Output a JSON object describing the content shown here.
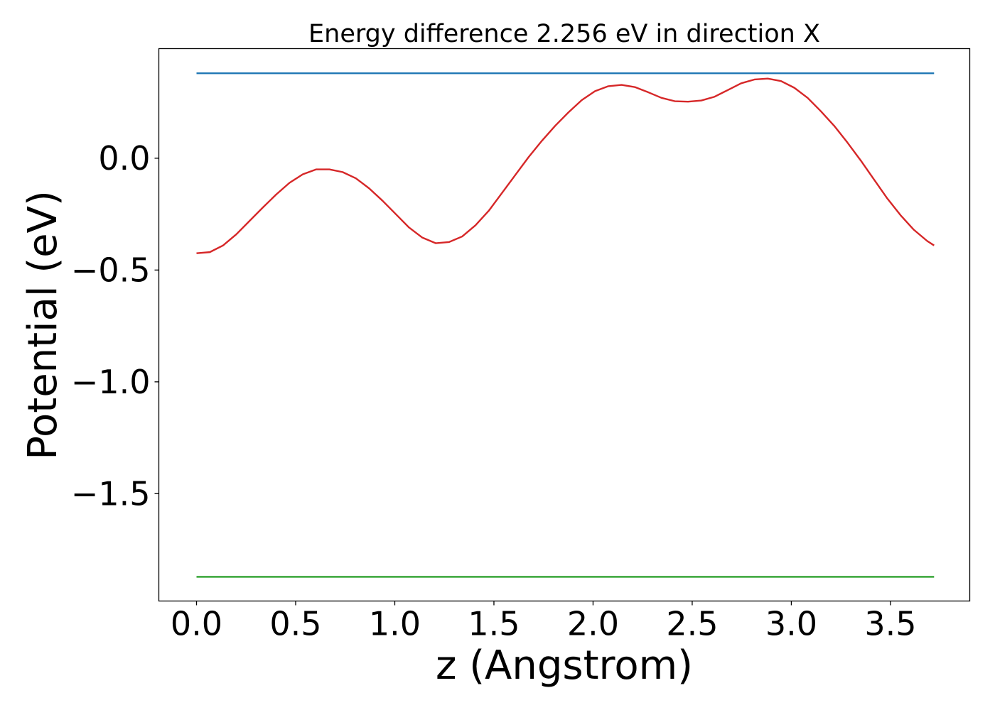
{
  "chart_data": {
    "type": "line",
    "title": "Energy difference 2.256 eV in direction X",
    "xlabel": "z (Angstrom)",
    "ylabel": "Potential (eV)",
    "xlim": [
      -0.19,
      3.9
    ],
    "ylim": [
      -1.98,
      0.49
    ],
    "grid": false,
    "legend": "none",
    "xticks": [
      {
        "value": 0.0,
        "label": "0.0"
      },
      {
        "value": 0.5,
        "label": "0.5"
      },
      {
        "value": 1.0,
        "label": "1.0"
      },
      {
        "value": 1.5,
        "label": "1.5"
      },
      {
        "value": 2.0,
        "label": "2.0"
      },
      {
        "value": 2.5,
        "label": "2.5"
      },
      {
        "value": 3.0,
        "label": "3.0"
      },
      {
        "value": 3.5,
        "label": "3.5"
      }
    ],
    "yticks": [
      {
        "value": 0.0,
        "label": "0.0"
      },
      {
        "value": -0.5,
        "label": "−0.5"
      },
      {
        "value": -1.0,
        "label": "−1.0"
      },
      {
        "value": -1.5,
        "label": "−1.5"
      }
    ],
    "series": [
      {
        "color": "#d62728",
        "x": [
          0.0,
          0.067,
          0.134,
          0.201,
          0.268,
          0.335,
          0.402,
          0.469,
          0.536,
          0.603,
          0.67,
          0.737,
          0.804,
          0.871,
          0.938,
          1.005,
          1.072,
          1.139,
          1.206,
          1.273,
          1.34,
          1.407,
          1.474,
          1.541,
          1.608,
          1.675,
          1.742,
          1.809,
          1.876,
          1.943,
          2.01,
          2.077,
          2.144,
          2.211,
          2.278,
          2.345,
          2.412,
          2.479,
          2.546,
          2.613,
          2.68,
          2.747,
          2.814,
          2.881,
          2.948,
          3.015,
          3.082,
          3.149,
          3.216,
          3.283,
          3.35,
          3.417,
          3.484,
          3.551,
          3.618,
          3.685,
          3.72
        ],
        "y": [
          -0.425,
          -0.42,
          -0.39,
          -0.34,
          -0.28,
          -0.22,
          -0.162,
          -0.11,
          -0.072,
          -0.05,
          -0.05,
          -0.062,
          -0.09,
          -0.135,
          -0.19,
          -0.25,
          -0.31,
          -0.355,
          -0.38,
          -0.375,
          -0.35,
          -0.3,
          -0.235,
          -0.155,
          -0.075,
          0.005,
          0.078,
          0.145,
          0.205,
          0.26,
          0.3,
          0.322,
          0.328,
          0.318,
          0.295,
          0.27,
          0.255,
          0.253,
          0.258,
          0.275,
          0.305,
          0.335,
          0.352,
          0.356,
          0.345,
          0.315,
          0.27,
          0.21,
          0.145,
          0.07,
          -0.01,
          -0.095,
          -0.18,
          -0.255,
          -0.32,
          -0.37,
          -0.39
        ]
      },
      {
        "color": "#1f77b4",
        "x": [
          0.0,
          3.72
        ],
        "y": [
          0.38,
          0.38
        ]
      },
      {
        "color": "#2ca02c",
        "x": [
          0.0,
          3.72
        ],
        "y": [
          -1.872,
          -1.872
        ]
      }
    ]
  }
}
